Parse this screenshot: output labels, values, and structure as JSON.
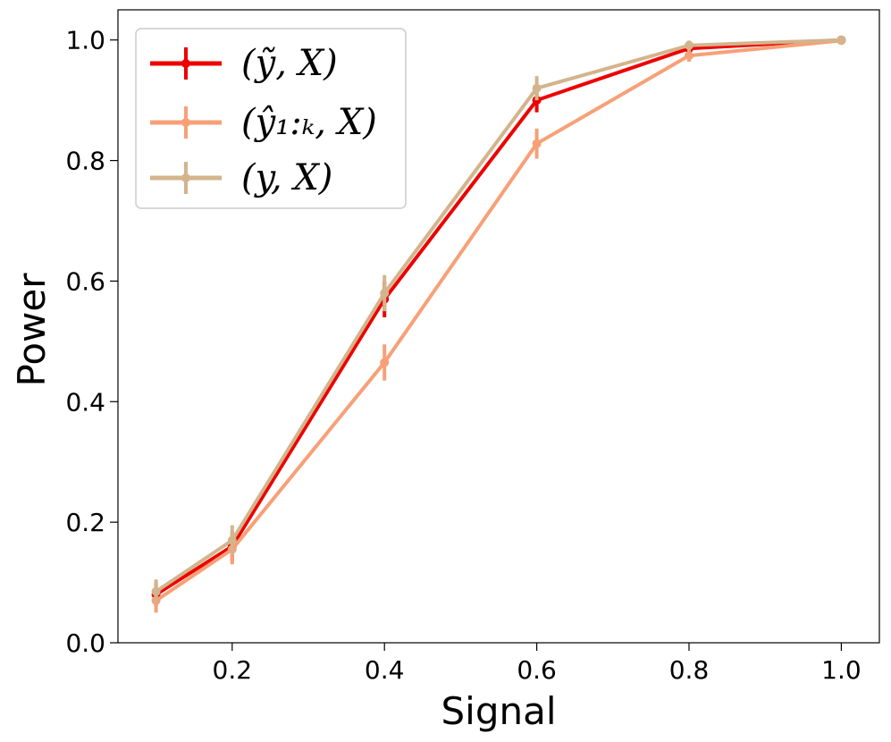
{
  "chart_data": {
    "type": "line",
    "xlabel": "Signal",
    "ylabel": "Power",
    "xlim": [
      0.05,
      1.05
    ],
    "ylim": [
      0.0,
      1.05
    ],
    "x_ticks": [
      "0.2",
      "0.4",
      "0.6",
      "0.8",
      "1.0"
    ],
    "y_ticks": [
      "0.0",
      "0.2",
      "0.4",
      "0.6",
      "0.8",
      "1.0"
    ],
    "x": [
      0.1,
      0.2,
      0.4,
      0.6,
      0.8,
      1.0
    ],
    "grid": false,
    "legend_position": "top-left",
    "series": [
      {
        "name": "(ỹ, X)",
        "color": "#ee0000",
        "values": [
          0.08,
          0.16,
          0.57,
          0.9,
          0.986,
          1.0
        ],
        "errors": [
          0.02,
          0.025,
          0.03,
          0.02,
          0.008,
          0.002
        ]
      },
      {
        "name": "(ŷ₁:ₖ, X)",
        "color": "#f7a077",
        "values": [
          0.07,
          0.155,
          0.465,
          0.828,
          0.974,
          0.999
        ],
        "errors": [
          0.02,
          0.025,
          0.03,
          0.025,
          0.01,
          0.003
        ]
      },
      {
        "name": "(y, X)",
        "color": "#d3b48c",
        "values": [
          0.085,
          0.17,
          0.58,
          0.92,
          0.991,
          1.0
        ],
        "errors": [
          0.02,
          0.025,
          0.03,
          0.02,
          0.008,
          0.002
        ]
      }
    ]
  }
}
